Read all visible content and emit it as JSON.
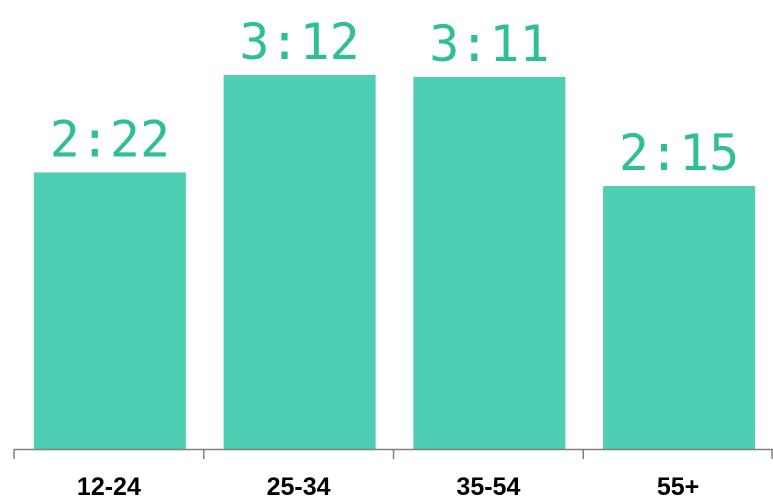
{
  "chart_data": {
    "type": "bar",
    "categories": [
      "12-24",
      "25-34",
      "35-54",
      "55+"
    ],
    "values": [
      142,
      192,
      191,
      135
    ],
    "data_labels": [
      "2:22",
      "3:12",
      "3:11",
      "2:15"
    ],
    "ylim": [
      0,
      240
    ],
    "grid": false,
    "legend": "none"
  },
  "colors": {
    "bar": "#4ecfb3",
    "label": "#2fbf96",
    "axis": "#808080",
    "tick_text": "#000000"
  }
}
